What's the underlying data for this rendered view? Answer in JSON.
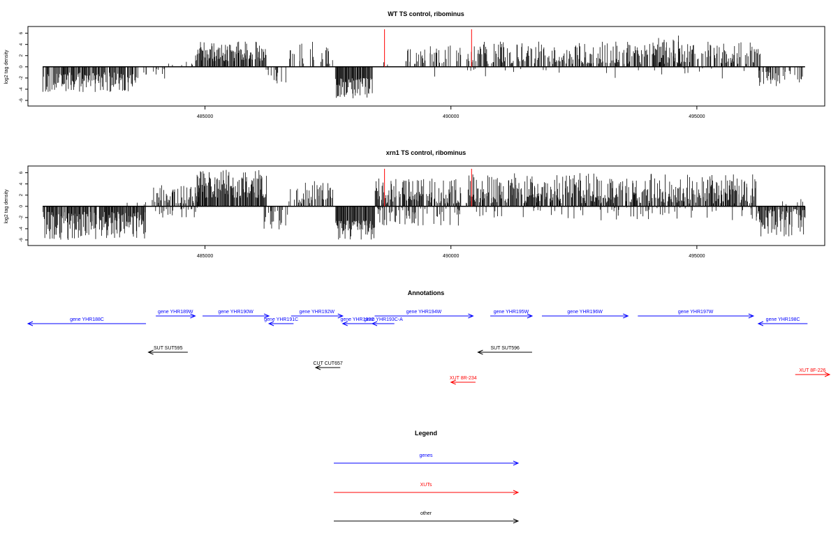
{
  "colors": {
    "density": "#000000",
    "marker": "#ff0000",
    "gene": "#0000ff",
    "xut": "#ff0000",
    "other": "#000000",
    "frame": "#000000"
  },
  "chart_data": [
    {
      "type": "bar",
      "title": "WT TS control, ribominus",
      "ylabel": "log2 tag density",
      "xlim": [
        481400,
        497600
      ],
      "ylim": [
        -7,
        7.2
      ],
      "x_ticks": [
        485000,
        490000,
        495000
      ],
      "x_tick_labels": [
        "485000",
        "490000",
        "495000"
      ],
      "y_ticks": [
        -6,
        -4,
        -2,
        0,
        2,
        4,
        6
      ],
      "y_tick_labels": [
        "-6",
        "-4",
        "-2",
        "0",
        "2",
        "4",
        "6"
      ],
      "markers": [
        488650,
        490420
      ],
      "segments": [
        {
          "from": 481700,
          "to": 483600,
          "strand": "neg",
          "min": 1.0,
          "max": 4.5,
          "density": 0.8
        },
        {
          "from": 483600,
          "to": 484200,
          "strand": "neg",
          "min": 0.3,
          "max": 2.5,
          "density": 0.15
        },
        {
          "from": 484200,
          "to": 484800,
          "strand": "pos",
          "min": 0.3,
          "max": 1.2,
          "density": 0.1
        },
        {
          "from": 484800,
          "to": 486250,
          "strand": "pos",
          "min": 1.0,
          "max": 4.5,
          "density": 0.85
        },
        {
          "from": 486200,
          "to": 486650,
          "strand": "neg",
          "min": 0.5,
          "max": 3.0,
          "density": 0.3
        },
        {
          "from": 486700,
          "to": 487600,
          "strand": "pos",
          "min": 0.5,
          "max": 4.5,
          "density": 0.3
        },
        {
          "from": 487650,
          "to": 488400,
          "strand": "neg",
          "min": 2.0,
          "max": 5.7,
          "density": 1.0
        },
        {
          "from": 488450,
          "to": 489100,
          "strand": "pos",
          "min": 0.3,
          "max": 1.5,
          "density": 0.1
        },
        {
          "from": 489100,
          "to": 490250,
          "strand": "pos",
          "min": 0.5,
          "max": 3.8,
          "density": 0.4
        },
        {
          "from": 489600,
          "to": 490700,
          "strand": "neg",
          "min": 0.3,
          "max": 2.0,
          "density": 0.1
        },
        {
          "from": 490300,
          "to": 496300,
          "strand": "pos",
          "min": 0.5,
          "max": 4.5,
          "density": 0.6
        },
        {
          "from": 494200,
          "to": 494700,
          "strand": "pos",
          "min": 2.0,
          "max": 5.8,
          "density": 0.2
        },
        {
          "from": 490700,
          "to": 496300,
          "strand": "neg",
          "min": 0.2,
          "max": 2.2,
          "density": 0.05
        },
        {
          "from": 496250,
          "to": 497200,
          "strand": "neg",
          "min": 0.5,
          "max": 3.5,
          "density": 0.5
        }
      ]
    },
    {
      "type": "bar",
      "title": "xrn1 TS control, ribominus",
      "ylabel": "log2 tag density",
      "xlim": [
        481400,
        497600
      ],
      "ylim": [
        -7,
        7.2
      ],
      "x_ticks": [
        485000,
        490000,
        495000
      ],
      "x_tick_labels": [
        "485000",
        "490000",
        "495000"
      ],
      "y_ticks": [
        -6,
        -4,
        -2,
        0,
        2,
        4,
        6
      ],
      "y_tick_labels": [
        "-6",
        "-4",
        "-2",
        "0",
        "2",
        "4",
        "6"
      ],
      "markers": [
        488650,
        490420
      ],
      "segments": [
        {
          "from": 481700,
          "to": 483800,
          "strand": "neg",
          "min": 1.0,
          "max": 6.0,
          "density": 0.9
        },
        {
          "from": 483400,
          "to": 483800,
          "strand": "pos",
          "min": 0.3,
          "max": 1.5,
          "density": 0.2
        },
        {
          "from": 483900,
          "to": 484900,
          "strand": "pos",
          "min": 0.5,
          "max": 4.0,
          "density": 0.6
        },
        {
          "from": 483900,
          "to": 484900,
          "strand": "neg",
          "min": 0.2,
          "max": 2.0,
          "density": 0.2
        },
        {
          "from": 484800,
          "to": 486250,
          "strand": "pos",
          "min": 1.5,
          "max": 6.5,
          "density": 0.95
        },
        {
          "from": 486200,
          "to": 486700,
          "strand": "neg",
          "min": 0.5,
          "max": 4.5,
          "density": 0.5
        },
        {
          "from": 486700,
          "to": 487600,
          "strand": "pos",
          "min": 0.5,
          "max": 4.5,
          "density": 0.5
        },
        {
          "from": 487650,
          "to": 488450,
          "strand": "neg",
          "min": 2.5,
          "max": 6.0,
          "density": 1.0
        },
        {
          "from": 488450,
          "to": 490200,
          "strand": "pos",
          "min": 0.5,
          "max": 5.0,
          "density": 0.8
        },
        {
          "from": 488500,
          "to": 490200,
          "strand": "neg",
          "min": 0.3,
          "max": 3.5,
          "density": 0.3
        },
        {
          "from": 490300,
          "to": 496200,
          "strand": "pos",
          "min": 0.5,
          "max": 6.0,
          "density": 0.8
        },
        {
          "from": 490500,
          "to": 496200,
          "strand": "neg",
          "min": 0.2,
          "max": 2.5,
          "density": 0.15
        },
        {
          "from": 496200,
          "to": 497200,
          "strand": "neg",
          "min": 0.5,
          "max": 5.5,
          "density": 0.85
        },
        {
          "from": 496600,
          "to": 497200,
          "strand": "pos",
          "min": 0.3,
          "max": 1.5,
          "density": 0.2
        }
      ]
    }
  ],
  "annotations": {
    "title": "Annotations",
    "features": [
      {
        "label": "gene YHR189W",
        "type": "gene",
        "strand": "+",
        "start": 484000,
        "end": 484800,
        "row": 1
      },
      {
        "label": "gene YHR188C",
        "type": "gene",
        "strand": "-",
        "start": 481400,
        "end": 483800,
        "row": 2
      },
      {
        "label": "gene YHR190W",
        "type": "gene",
        "strand": "+",
        "start": 484950,
        "end": 486300,
        "row": 1
      },
      {
        "label": "gene YHR191C",
        "type": "gene",
        "strand": "-",
        "start": 486300,
        "end": 486800,
        "row": 2
      },
      {
        "label": "gene YHR192W",
        "type": "gene",
        "strand": "+",
        "start": 486750,
        "end": 487800,
        "row": 1
      },
      {
        "label": "gene YHR193C",
        "type": "gene",
        "strand": "-",
        "start": 487800,
        "end": 488400,
        "row": 2
      },
      {
        "label": "gene YHR193C-A",
        "type": "gene",
        "strand": "-",
        "start": 488400,
        "end": 488850,
        "row": 2
      },
      {
        "label": "gene YHR194W",
        "type": "gene",
        "strand": "+",
        "start": 488450,
        "end": 490450,
        "row": 1
      },
      {
        "label": "gene YHR195W",
        "type": "gene",
        "strand": "+",
        "start": 490800,
        "end": 491650,
        "row": 1
      },
      {
        "label": "gene YHR196W",
        "type": "gene",
        "strand": "+",
        "start": 491850,
        "end": 493600,
        "row": 1
      },
      {
        "label": "gene YHR197W",
        "type": "gene",
        "strand": "+",
        "start": 493800,
        "end": 496150,
        "row": 1
      },
      {
        "label": "gene YHR198C",
        "type": "gene",
        "strand": "-",
        "start": 496250,
        "end": 497250,
        "row": 2
      },
      {
        "label": "SUT SUT595",
        "type": "other",
        "strand": "-",
        "start": 483850,
        "end": 484650,
        "row": 3
      },
      {
        "label": "SUT SUT596",
        "type": "other",
        "strand": "-",
        "start": 490550,
        "end": 491650,
        "row": 3
      },
      {
        "label": "CUT CUT657",
        "type": "other",
        "strand": "-",
        "start": 487250,
        "end": 487750,
        "row": 4
      },
      {
        "label": "XUT 8R-234",
        "type": "xut",
        "strand": "-",
        "start": 490000,
        "end": 490500,
        "row": 5
      },
      {
        "label": "XUT 8F-226",
        "type": "xut",
        "strand": "+",
        "start": 497000,
        "end": 497700,
        "row": 6
      }
    ]
  },
  "legend": {
    "title": "Legend",
    "items": [
      {
        "label": "genes",
        "type": "gene"
      },
      {
        "label": "XUTs",
        "type": "xut"
      },
      {
        "label": "other",
        "type": "other"
      }
    ]
  }
}
